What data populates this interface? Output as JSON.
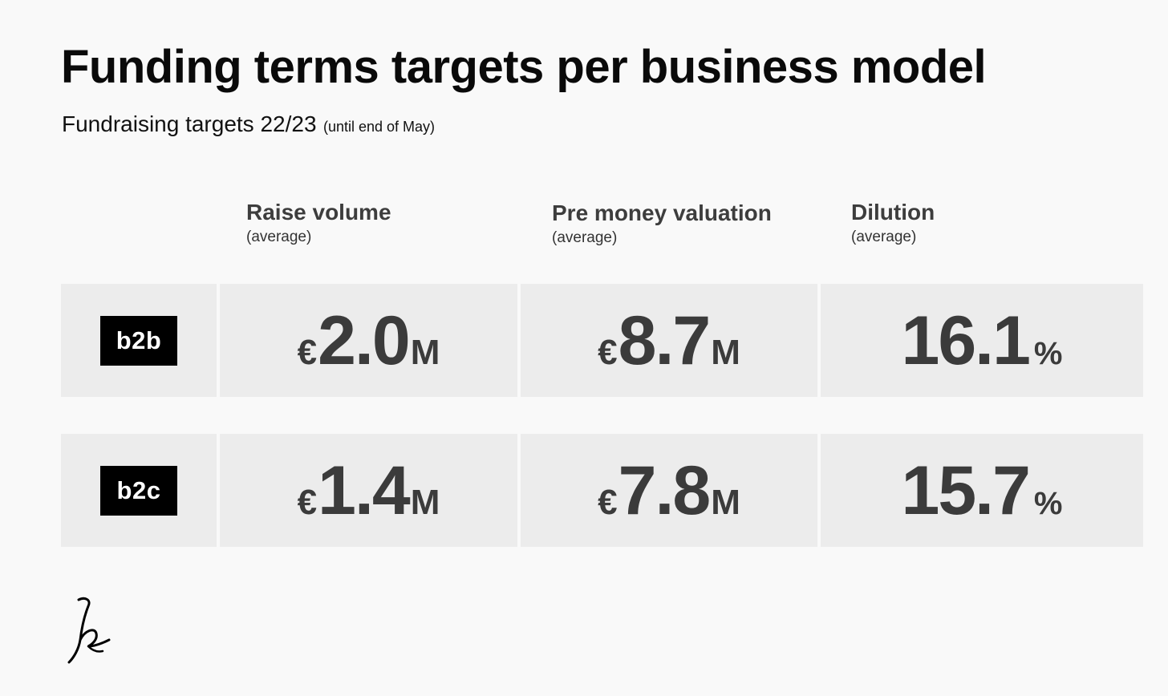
{
  "title": "Funding terms targets per business model",
  "subtitle": {
    "main": "Fundraising targets 22/23",
    "note": "(until end of May)"
  },
  "columns": [
    {
      "label": "Raise volume",
      "sub": "(average)"
    },
    {
      "label": "Pre money valuation",
      "sub": "(average)"
    },
    {
      "label": "Dilution",
      "sub": "(average)"
    }
  ],
  "rows": [
    {
      "model": "b2b",
      "raise": {
        "prefix": "€",
        "value": "2.0",
        "unit": "M"
      },
      "valuation": {
        "prefix": "€",
        "value": "8.7",
        "unit": "M"
      },
      "dilution": {
        "value": "16.1",
        "unit": "%"
      }
    },
    {
      "model": "b2c",
      "raise": {
        "prefix": "€",
        "value": "1.4",
        "unit": "M"
      },
      "valuation": {
        "prefix": "€",
        "value": "7.8",
        "unit": "M"
      },
      "dilution": {
        "value": "15.7",
        "unit": "%"
      }
    }
  ],
  "colors": {
    "background": "#f9f9f9",
    "cell": "#ececec",
    "badge": "#000000",
    "value_text": "#3b3b3b"
  },
  "logo": {
    "icon": "signature-logo-icon"
  }
}
